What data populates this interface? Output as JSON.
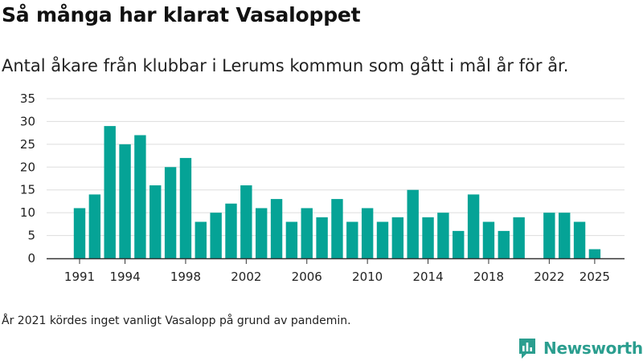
{
  "title": "Så många har klarat Vasaloppet",
  "subtitle": "Antal åkare från klubbar i Lerums kommun som gått i mål år för år.",
  "note": "År 2021 kördes inget vanligt Vasalopp på grund av pandemin.",
  "brand": {
    "name": "Newsworthy",
    "color": "#2b9e8f",
    "icon": "newsworthy-logo-icon"
  },
  "colors": {
    "bar": "#05a396",
    "grid": "#dddddd",
    "axis": "#333333"
  },
  "chart_data": {
    "type": "bar",
    "title": "Så många har klarat Vasaloppet",
    "xlabel": "",
    "ylabel": "",
    "ylim": [
      0,
      35
    ],
    "yticks": [
      0,
      5,
      10,
      15,
      20,
      25,
      30,
      35
    ],
    "xticks": [
      1991,
      1994,
      1998,
      2002,
      2006,
      2010,
      2014,
      2018,
      2022,
      2025
    ],
    "categories": [
      1991,
      1992,
      1993,
      1994,
      1995,
      1996,
      1997,
      1998,
      1999,
      2000,
      2001,
      2002,
      2003,
      2004,
      2005,
      2006,
      2007,
      2008,
      2009,
      2010,
      2011,
      2012,
      2013,
      2014,
      2015,
      2016,
      2017,
      2018,
      2019,
      2020,
      2021,
      2022,
      2023,
      2024,
      2025
    ],
    "values": [
      11,
      14,
      29,
      25,
      27,
      16,
      20,
      22,
      8,
      10,
      12,
      16,
      11,
      13,
      8,
      11,
      9,
      13,
      8,
      11,
      8,
      9,
      15,
      9,
      10,
      6,
      14,
      8,
      6,
      9,
      null,
      10,
      10,
      8,
      2
    ],
    "grid": true,
    "legend": "none"
  }
}
